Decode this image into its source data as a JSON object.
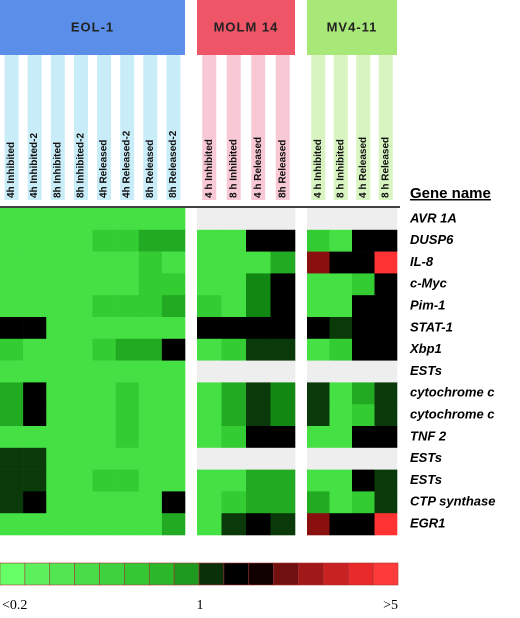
{
  "chart_data": {
    "type": "heatmap",
    "row_header": "Gene name",
    "rows": [
      "AVR 1A",
      "DUSP6",
      "IL-8",
      "c-Myc",
      "Pim-1",
      "STAT-1",
      "Xbp1",
      "ESTs",
      "cytochrome c",
      "cytochrome c",
      "TNF 2",
      "ESTs",
      "ESTs",
      "CTP synthase",
      "EGR1"
    ],
    "groups": [
      {
        "name": "EOL-1",
        "color": "#5b8ee8",
        "stripe": "#c8ecf8",
        "columns": [
          "4h Inhibited",
          "4h Inhibited-2",
          "8h Inhibited",
          "8h Inhibited-2",
          "4h Released",
          "4h Released-2",
          "8h Released",
          "8h Released-2"
        ],
        "cells": [
          [
            "#44e044",
            "#44e044",
            "#44e044",
            "#44e044",
            "#44e044",
            "#44e044",
            "#44e044",
            "#44e044"
          ],
          [
            "#44e044",
            "#44e044",
            "#44e044",
            "#44e044",
            "#33cc33",
            "#33cc33",
            "#22aa22",
            "#22aa22"
          ],
          [
            "#44e044",
            "#44e044",
            "#44e044",
            "#44e044",
            "#44e044",
            "#44e044",
            "#33cc33",
            "#44e044"
          ],
          [
            "#44e044",
            "#44e044",
            "#44e044",
            "#44e044",
            "#44e044",
            "#44e044",
            "#33cc33",
            "#33cc33"
          ],
          [
            "#44e044",
            "#44e044",
            "#44e044",
            "#44e044",
            "#33cc33",
            "#33cc33",
            "#33cc33",
            "#22aa22"
          ],
          [
            "#000000",
            "#000000",
            "#44e044",
            "#44e044",
            "#44e044",
            "#44e044",
            "#44e044",
            "#44e044"
          ],
          [
            "#33cc33",
            "#44e044",
            "#44e044",
            "#44e044",
            "#33cc33",
            "#22aa22",
            "#22aa22",
            "#000000"
          ],
          [
            "#44e044",
            "#44e044",
            "#44e044",
            "#44e044",
            "#44e044",
            "#44e044",
            "#44e044",
            "#44e044"
          ],
          [
            "#22aa22",
            "#000000",
            "#44e044",
            "#44e044",
            "#44e044",
            "#33cc33",
            "#44e044",
            "#44e044"
          ],
          [
            "#22aa22",
            "#000000",
            "#44e044",
            "#44e044",
            "#44e044",
            "#33cc33",
            "#44e044",
            "#44e044"
          ],
          [
            "#44e044",
            "#44e044",
            "#44e044",
            "#44e044",
            "#44e044",
            "#33cc33",
            "#44e044",
            "#44e044"
          ],
          [
            "#0a3a0a",
            "#0a3a0a",
            "#44e044",
            "#44e044",
            "#44e044",
            "#44e044",
            "#44e044",
            "#44e044"
          ],
          [
            "#0a3a0a",
            "#0a3a0a",
            "#44e044",
            "#44e044",
            "#33cc33",
            "#33cc33",
            "#44e044",
            "#44e044"
          ],
          [
            "#0a3a0a",
            "#000000",
            "#44e044",
            "#44e044",
            "#44e044",
            "#44e044",
            "#44e044",
            "#000000"
          ],
          [
            "#44e044",
            "#44e044",
            "#44e044",
            "#44e044",
            "#44e044",
            "#44e044",
            "#44e044",
            "#22aa22"
          ]
        ]
      },
      {
        "name": "MOLM 14",
        "color": "#ee5566",
        "stripe": "#f8c8d4",
        "columns": [
          "4 h Inhibited",
          "8 h Inhibited",
          "4 h Released",
          "8h Released"
        ],
        "cells": [
          [
            "#eeeeee",
            "#eeeeee",
            "#eeeeee",
            "#eeeeee"
          ],
          [
            "#44e044",
            "#44e044",
            "#000000",
            "#000000"
          ],
          [
            "#44e044",
            "#44e044",
            "#44e044",
            "#22aa22"
          ],
          [
            "#44e044",
            "#44e044",
            "#118811",
            "#000000"
          ],
          [
            "#33cc33",
            "#44e044",
            "#118811",
            "#000000"
          ],
          [
            "#000000",
            "#000000",
            "#000000",
            "#000000"
          ],
          [
            "#44e044",
            "#33cc33",
            "#0a3a0a",
            "#0a3a0a"
          ],
          [
            "#eeeeee",
            "#eeeeee",
            "#eeeeee",
            "#eeeeee"
          ],
          [
            "#44e044",
            "#22aa22",
            "#0a3a0a",
            "#118811"
          ],
          [
            "#44e044",
            "#22aa22",
            "#0a3a0a",
            "#118811"
          ],
          [
            "#44e044",
            "#33cc33",
            "#000000",
            "#000000"
          ],
          [
            "#eeeeee",
            "#eeeeee",
            "#eeeeee",
            "#eeeeee"
          ],
          [
            "#44e044",
            "#44e044",
            "#22aa22",
            "#22aa22"
          ],
          [
            "#44e044",
            "#33cc33",
            "#22aa22",
            "#22aa22"
          ],
          [
            "#44e044",
            "#0a3a0a",
            "#000000",
            "#0a3a0a"
          ]
        ]
      },
      {
        "name": "MV4-11",
        "color": "#a8e878",
        "stripe": "#d8f4c0",
        "columns": [
          "4 h Inhibited",
          "8 h Inhibited",
          "4 h Released",
          "8 h Released"
        ],
        "cells": [
          [
            "#eeeeee",
            "#eeeeee",
            "#eeeeee",
            "#eeeeee"
          ],
          [
            "#33cc33",
            "#44e044",
            "#000000",
            "#000000"
          ],
          [
            "#8a1010",
            "#000000",
            "#000000",
            "#ff3333"
          ],
          [
            "#44e044",
            "#44e044",
            "#33cc33",
            "#000000"
          ],
          [
            "#44e044",
            "#44e044",
            "#000000",
            "#000000"
          ],
          [
            "#000000",
            "#0a3a0a",
            "#000000",
            "#000000"
          ],
          [
            "#44e044",
            "#33cc33",
            "#000000",
            "#000000"
          ],
          [
            "#eeeeee",
            "#eeeeee",
            "#eeeeee",
            "#eeeeee"
          ],
          [
            "#0a3a0a",
            "#44e044",
            "#22aa22",
            "#0a3a0a"
          ],
          [
            "#0a3a0a",
            "#44e044",
            "#33cc33",
            "#0a3a0a"
          ],
          [
            "#44e044",
            "#44e044",
            "#000000",
            "#000000"
          ],
          [
            "#eeeeee",
            "#eeeeee",
            "#eeeeee",
            "#eeeeee"
          ],
          [
            "#44e044",
            "#44e044",
            "#000000",
            "#0a3a0a"
          ],
          [
            "#22aa22",
            "#44e044",
            "#33cc33",
            "#0a3a0a"
          ],
          [
            "#8a1010",
            "#000000",
            "#000000",
            "#ff3333"
          ]
        ]
      }
    ],
    "scale": {
      "colors": [
        "#66ff66",
        "#5cf05c",
        "#52e652",
        "#48dc48",
        "#3ed23e",
        "#34c834",
        "#2ab82a",
        "#1e9a1e",
        "#0a300a",
        "#000000",
        "#100000",
        "#701010",
        "#a01818",
        "#c82222",
        "#e82a2a",
        "#ff3a3a"
      ],
      "labels": [
        "<0.2",
        "1",
        ">5"
      ]
    }
  }
}
